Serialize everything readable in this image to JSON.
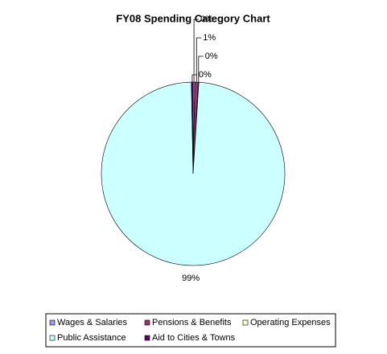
{
  "chart_data": {
    "type": "pie",
    "title": "FY08 Spending Category Chart",
    "categories": [
      "Wages & Salaries",
      "Pensions & Benefits",
      "Operating Expenses",
      "Public Assistance",
      "Aid to Cities & Towns"
    ],
    "values": [
      0.3,
      0.6,
      0.1,
      98.7,
      0.3
    ],
    "value_labels": [
      "0%",
      "1%",
      "0%",
      "99%",
      "0%"
    ],
    "colors": [
      "#9999ff",
      "#993366",
      "#ffffcc",
      "#ccffff",
      "#660066"
    ],
    "legend": "bottom"
  }
}
